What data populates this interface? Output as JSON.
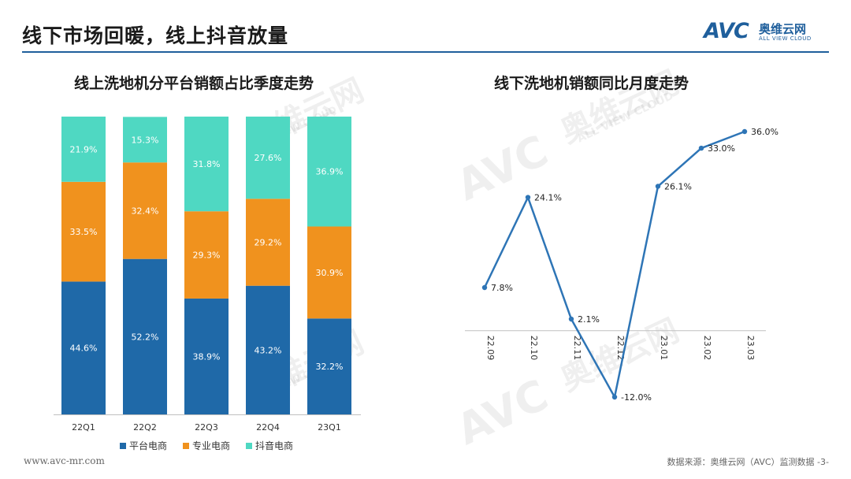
{
  "header": {
    "title": "线下市场回暖，线上抖音放量",
    "logo": {
      "mark": "AVC",
      "cn": "奥维云网",
      "en": "ALL VIEW CLOUD"
    }
  },
  "watermark": {
    "mark": "AVC",
    "cn": "奥维云网",
    "en": "ALL VIEW CLOUD"
  },
  "footer": {
    "url": "www.avc-mr.com",
    "source": "数据来源：奥维云网（AVC）监测数据  -3-"
  },
  "colors": {
    "platform": "#1f69a8",
    "professional": "#f0921e",
    "douyin": "#4fd8c2",
    "line": "#2e75b6",
    "accent": "#1f5f9c"
  },
  "chart_data": [
    {
      "type": "bar",
      "stacked": true,
      "percent": true,
      "title": "线上洗地机分平台销额占比季度走势",
      "categories": [
        "22Q1",
        "22Q2",
        "22Q3",
        "22Q4",
        "23Q1"
      ],
      "series": [
        {
          "name": "平台电商",
          "values": [
            44.6,
            52.2,
            38.9,
            43.2,
            32.2
          ],
          "labels": [
            "44.6%",
            "52.2%",
            "38.9%",
            "43.2%",
            "32.2%"
          ],
          "color": "#1f69a8"
        },
        {
          "name": "专业电商",
          "values": [
            33.5,
            32.4,
            29.3,
            29.2,
            30.9
          ],
          "labels": [
            "33.5%",
            "32.4%",
            "29.3%",
            "29.2%",
            "30.9%"
          ],
          "color": "#f0921e"
        },
        {
          "name": "抖音电商",
          "values": [
            21.9,
            15.3,
            31.8,
            27.6,
            36.9
          ],
          "labels": [
            "21.9%",
            "15.3%",
            "31.8%",
            "27.6%",
            "36.9%"
          ],
          "color": "#4fd8c2"
        }
      ],
      "legend_position": "bottom",
      "ylim": [
        0,
        100
      ]
    },
    {
      "type": "line",
      "title": "线下洗地机销额同比月度走势",
      "categories": [
        "22.09",
        "22.10",
        "22.11",
        "22.12",
        "23.01",
        "23.02",
        "23.03"
      ],
      "values": [
        7.8,
        24.1,
        2.1,
        -12.0,
        26.1,
        33.0,
        36.0
      ],
      "labels": [
        "7.8%",
        "24.1%",
        "2.1%",
        "-12.0%",
        "26.1%",
        "33.0%",
        "36.0%"
      ],
      "ylim": [
        -12,
        36
      ]
    }
  ]
}
